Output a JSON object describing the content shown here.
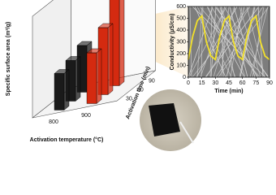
{
  "chart_data": [
    {
      "type": "bar3d",
      "y_label": "Specific surface area (m²/g)",
      "x_label": "Activation temperature (°C)",
      "z_label": "Activation time (min)",
      "categories": [
        "800",
        "900"
      ],
      "z_categories": [
        "30",
        "60",
        "90"
      ],
      "values": [
        [
          900,
          1000,
          1150
        ],
        [
          1250,
          1650,
          2300
        ]
      ],
      "colors": [
        "#1a1a1a",
        "#d42a10"
      ],
      "ylim": [
        0,
        2500
      ]
    },
    {
      "type": "line",
      "y_label": "Conductivity (µS/cm)",
      "x_label": "Time (min)",
      "x": [
        0,
        5,
        10,
        15,
        20,
        25,
        30,
        35,
        40,
        45,
        50,
        55,
        60,
        65,
        70,
        75,
        80,
        85,
        90
      ],
      "series": [
        {
          "color": "#f2e02a",
          "values": [
            150,
            350,
            480,
            520,
            300,
            180,
            150,
            350,
            480,
            520,
            300,
            180,
            150,
            350,
            480,
            520,
            300,
            180,
            150
          ]
        }
      ],
      "xlim": [
        0,
        90
      ],
      "ylim": [
        0,
        600
      ],
      "xticks": [
        0,
        15,
        30,
        45,
        60,
        75,
        90
      ],
      "yticks": [
        0,
        100,
        200,
        300,
        400,
        500,
        600
      ]
    }
  ]
}
